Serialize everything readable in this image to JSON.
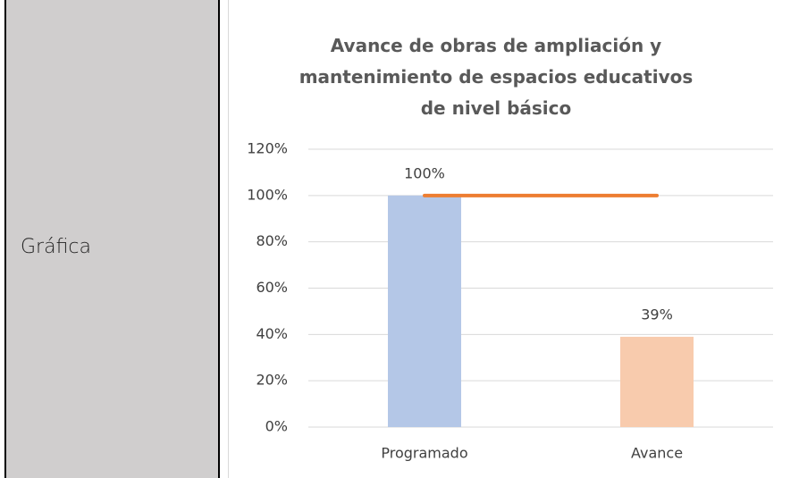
{
  "label": "Gráfica",
  "chart_data": {
    "type": "bar",
    "title": "Avance de obras de ampliación y mantenimiento de espacios educativos de nivel básico",
    "categories": [
      "Programado",
      "Avance"
    ],
    "values": [
      100,
      39
    ],
    "value_labels": [
      "100%",
      "39%"
    ],
    "colors": [
      "#b4c7e7",
      "#f8cbad"
    ],
    "line": {
      "color": "#ed7d31",
      "values": [
        100,
        100
      ]
    },
    "ylim": [
      0,
      120
    ],
    "yticks": [
      {
        "value": 0,
        "label": "0%"
      },
      {
        "value": 20,
        "label": "20%"
      },
      {
        "value": 40,
        "label": "40%"
      },
      {
        "value": 60,
        "label": "60%"
      },
      {
        "value": 80,
        "label": "80%"
      },
      {
        "value": 100,
        "label": "100%"
      },
      {
        "value": 120,
        "label": "120%"
      }
    ],
    "grid": true
  }
}
